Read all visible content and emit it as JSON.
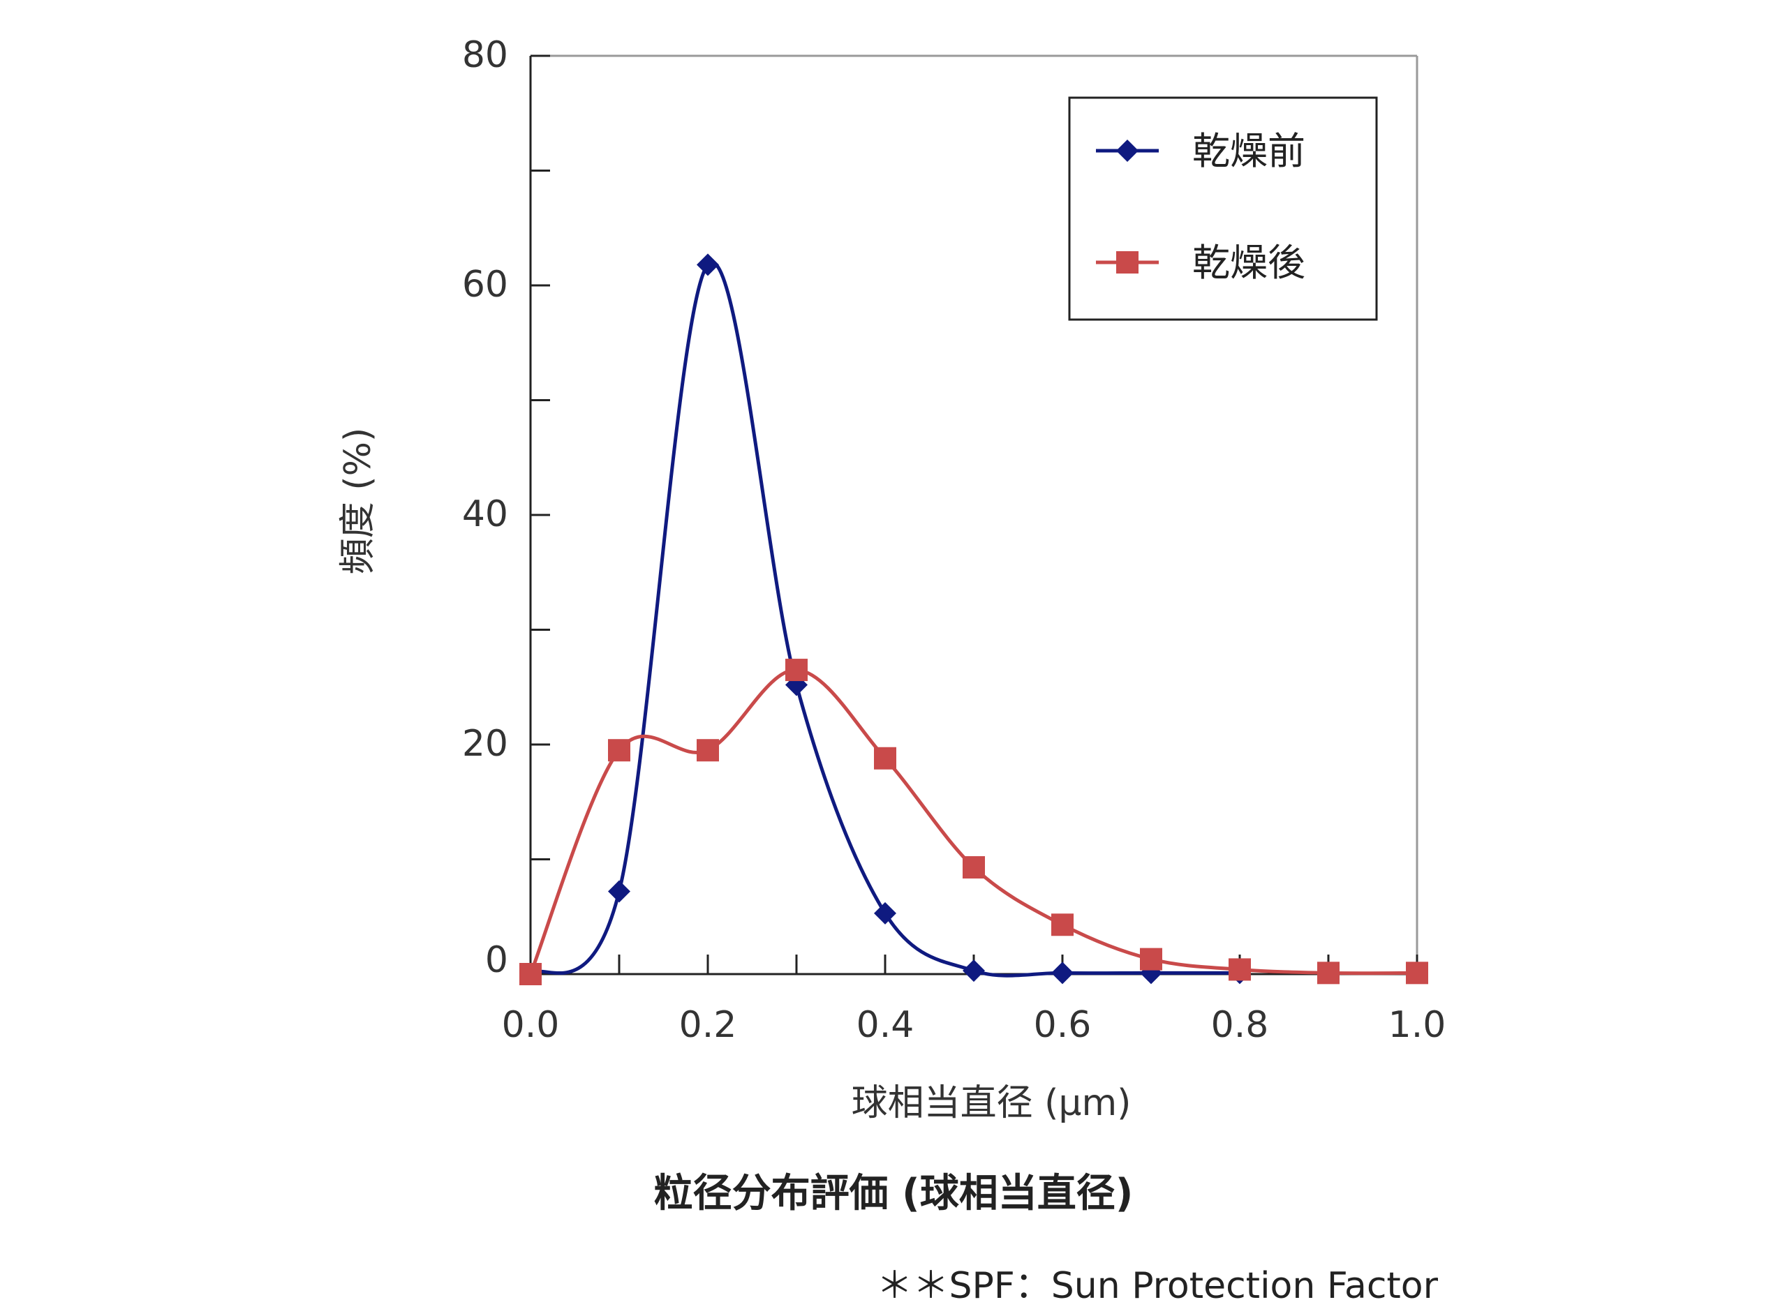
{
  "chart_data": {
    "type": "line",
    "x": [
      0.0,
      0.1,
      0.2,
      0.3,
      0.4,
      0.5,
      0.6,
      0.7,
      0.8,
      0.9,
      1.0
    ],
    "series": [
      {
        "name": "乾燥前",
        "values": [
          0,
          7.2,
          61.8,
          25.2,
          5.3,
          0.3,
          0.1,
          0.1,
          0.1,
          null,
          null
        ],
        "color": "#0f1a80",
        "marker": "diamond"
      },
      {
        "name": "乾燥後",
        "values": [
          0,
          19.5,
          19.5,
          26.5,
          18.8,
          9.3,
          4.3,
          1.3,
          0.4,
          0.1,
          0.1
        ],
        "color": "#c94a4a",
        "marker": "square"
      }
    ],
    "xlabel": "球相当直径 (μm)",
    "ylabel": "頻度 (%)",
    "xlim": [
      0,
      1.0
    ],
    "ylim": [
      0,
      80
    ],
    "x_ticks": [
      "0.0",
      "0.2",
      "0.4",
      "0.6",
      "0.8",
      "1.0"
    ],
    "y_ticks": [
      "0",
      "20",
      "40",
      "60",
      "80"
    ],
    "grid": false,
    "legend_position": "top-right"
  },
  "caption": "粒径分布評価 (球相当直径)",
  "footnote": "＊＊SPF：Sun Protection Factor"
}
